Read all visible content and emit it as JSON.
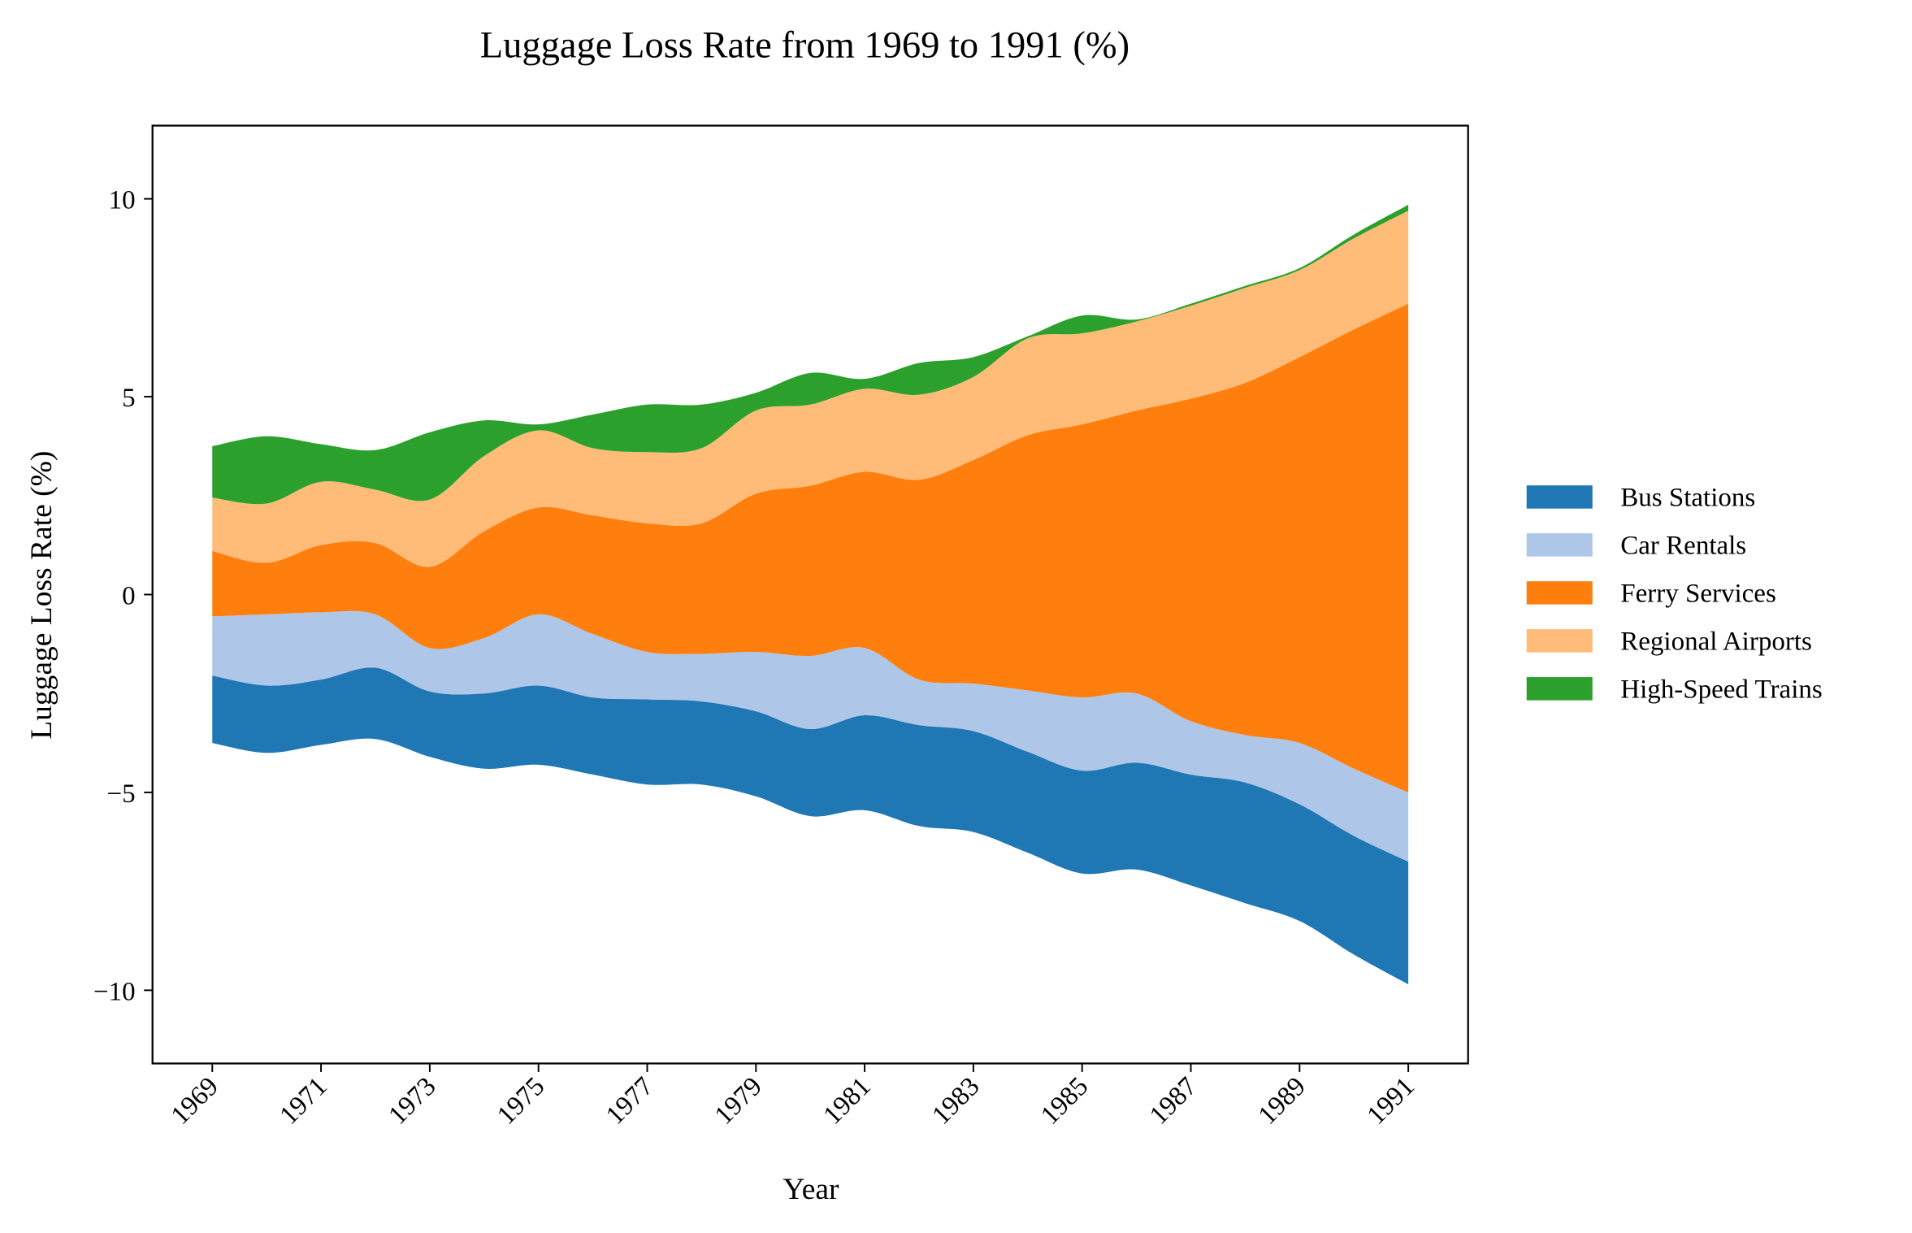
{
  "chart_data": {
    "type": "streamgraph",
    "title": "Luggage Loss Rate from 1969 to 1991 (%)",
    "x_label": "Year",
    "y_label": "Luggage Loss Rate (%)",
    "baseline": "symmetric",
    "legend": "right",
    "x": [
      1969,
      1970,
      1971,
      1972,
      1973,
      1974,
      1975,
      1976,
      1977,
      1978,
      1979,
      1980,
      1981,
      1982,
      1983,
      1984,
      1985,
      1986,
      1987,
      1988,
      1989,
      1990,
      1991
    ],
    "series": [
      {
        "name": "Bus Stations",
        "color": "#1f77b4",
        "values": [
          1.7,
          1.7,
          1.65,
          1.8,
          1.65,
          1.9,
          2.0,
          1.95,
          2.15,
          2.1,
          2.15,
          2.2,
          2.4,
          2.55,
          2.55,
          2.55,
          2.6,
          2.7,
          2.8,
          3.05,
          2.95,
          3.0,
          3.1
        ]
      },
      {
        "name": "Car Rentals",
        "color": "#aec7e8",
        "values": [
          1.5,
          1.8,
          1.7,
          1.35,
          1.1,
          1.4,
          1.8,
          1.6,
          1.2,
          1.2,
          1.5,
          1.85,
          1.7,
          1.15,
          1.2,
          1.55,
          1.85,
          1.75,
          1.35,
          1.2,
          1.55,
          1.7,
          1.75
        ]
      },
      {
        "name": "Ferry Services",
        "color": "#ff7f0e",
        "values": [
          1.65,
          1.3,
          1.7,
          1.8,
          2.05,
          2.7,
          2.7,
          3.0,
          3.25,
          3.3,
          4.0,
          4.3,
          4.45,
          5.05,
          5.65,
          6.45,
          6.9,
          7.15,
          8.15,
          8.9,
          9.75,
          11.1,
          12.35
        ]
      },
      {
        "name": "Regional Airports",
        "color": "#ffbb78",
        "values": [
          1.35,
          1.5,
          1.6,
          1.35,
          1.7,
          1.9,
          1.95,
          1.7,
          1.8,
          1.9,
          2.1,
          2.05,
          2.1,
          2.15,
          2.1,
          2.45,
          2.3,
          2.25,
          2.35,
          2.4,
          2.2,
          2.3,
          2.35
        ]
      },
      {
        "name": "High-Speed Trains",
        "color": "#2ca02c",
        "values": [
          1.3,
          1.7,
          0.95,
          1.0,
          1.7,
          0.9,
          0.15,
          0.85,
          1.2,
          1.1,
          0.45,
          0.8,
          0.25,
          0.8,
          0.5,
          0.05,
          0.45,
          0.05,
          0.05,
          0.05,
          0.05,
          0.1,
          0.15
        ]
      }
    ],
    "xlim": [
      1967.9,
      1992.1
    ],
    "xticks": [
      1969,
      1971,
      1973,
      1975,
      1977,
      1979,
      1981,
      1983,
      1985,
      1987,
      1989,
      1991
    ],
    "ylim": [
      -11.85,
      11.85
    ],
    "yticks": [
      {
        "value": -10,
        "label": "−10"
      },
      {
        "value": -5,
        "label": "−5"
      },
      0,
      5,
      10
    ]
  }
}
